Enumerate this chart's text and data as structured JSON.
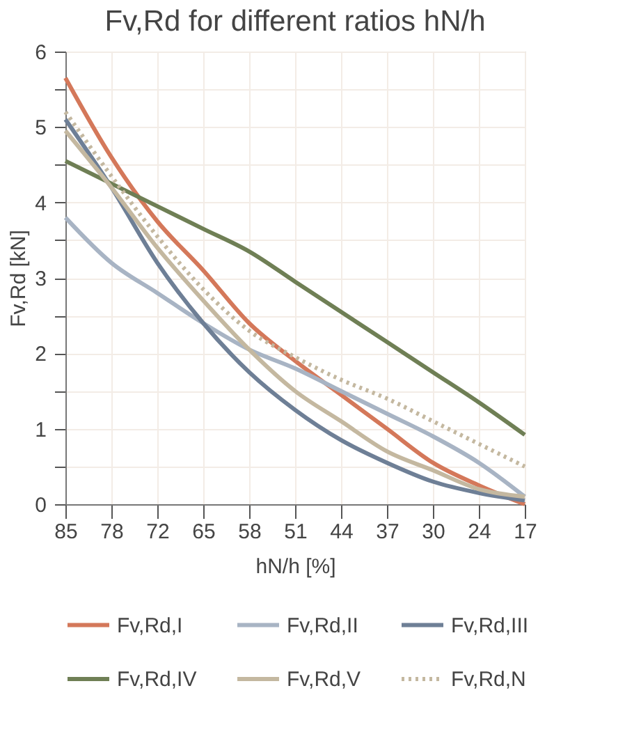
{
  "chart_data": {
    "type": "line",
    "title": "Fv,Rd for different ratios hN/h",
    "xlabel": "hN/h [%]",
    "ylabel": "Fv,Rd [kN]",
    "categories": [
      "85",
      "78",
      "72",
      "65",
      "58",
      "51",
      "44",
      "37",
      "30",
      "24",
      "17"
    ],
    "ylim": [
      0,
      6
    ],
    "yticks": [
      0,
      {
        "value": 0.5,
        "label": null
      },
      1,
      {
        "value": 1.5,
        "label": null
      },
      2,
      {
        "value": 2.5,
        "label": null
      },
      3,
      {
        "value": 3.5,
        "label": null
      },
      4,
      {
        "value": 4.5,
        "label": null
      },
      5,
      {
        "value": 5.5,
        "label": null
      },
      6
    ],
    "grid": true,
    "legend": "bottom",
    "marker": "none",
    "series": [
      {
        "name": "Fv,Rd,I",
        "color": "#d4785a",
        "line_style": "solid",
        "values": [
          5.65,
          4.6,
          3.75,
          3.1,
          2.4,
          1.9,
          1.45,
          1.0,
          0.55,
          0.25,
          0.0
        ]
      },
      {
        "name": "Fv,Rd,II",
        "color": "#a8b4c4",
        "line_style": "solid",
        "values": [
          3.8,
          3.2,
          2.8,
          2.4,
          2.05,
          1.8,
          1.5,
          1.2,
          0.9,
          0.55,
          0.1
        ]
      },
      {
        "name": "Fv,Rd,III",
        "color": "#6e7f96",
        "line_style": "solid",
        "values": [
          5.1,
          4.2,
          3.2,
          2.4,
          1.75,
          1.25,
          0.85,
          0.55,
          0.3,
          0.15,
          0.05
        ]
      },
      {
        "name": "Fv,Rd,IV",
        "color": "#6f7f55",
        "line_style": "solid",
        "values": [
          4.55,
          4.25,
          3.95,
          3.65,
          3.35,
          2.95,
          2.55,
          2.15,
          1.75,
          1.35,
          0.92
        ]
      },
      {
        "name": "Fv,Rd,V",
        "color": "#c4b8a0",
        "line_style": "solid",
        "values": [
          4.95,
          4.2,
          3.4,
          2.7,
          2.05,
          1.5,
          1.1,
          0.7,
          0.45,
          0.2,
          0.1
        ]
      },
      {
        "name": "Fv,Rd,N",
        "color": "#c4b8a0",
        "line_style": "dotted",
        "values": [
          5.2,
          4.35,
          3.55,
          2.85,
          2.3,
          1.95,
          1.65,
          1.4,
          1.1,
          0.8,
          0.5
        ]
      }
    ]
  }
}
